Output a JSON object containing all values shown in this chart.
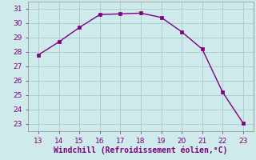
{
  "x": [
    13,
    14,
    15,
    16,
    17,
    18,
    19,
    20,
    21,
    22,
    23
  ],
  "y": [
    27.8,
    28.7,
    29.7,
    30.6,
    30.65,
    30.7,
    30.4,
    29.4,
    28.2,
    25.2,
    23.05
  ],
  "line_color": "#800080",
  "marker": "s",
  "marker_size": 2.5,
  "bg_color": "#ceeaea",
  "grid_color": "#aacfcf",
  "xlabel": "Windchill (Refroidissement éolien,°C)",
  "xlabel_color": "#800080",
  "tick_color": "#800080",
  "spine_color": "#888888",
  "xlim": [
    12.5,
    23.5
  ],
  "ylim": [
    22.5,
    31.5
  ],
  "xticks": [
    13,
    14,
    15,
    16,
    17,
    18,
    19,
    20,
    21,
    22,
    23
  ],
  "yticks": [
    23,
    24,
    25,
    26,
    27,
    28,
    29,
    30,
    31
  ],
  "xlabel_fontsize": 7,
  "tick_fontsize": 6.5,
  "linewidth": 1.0
}
